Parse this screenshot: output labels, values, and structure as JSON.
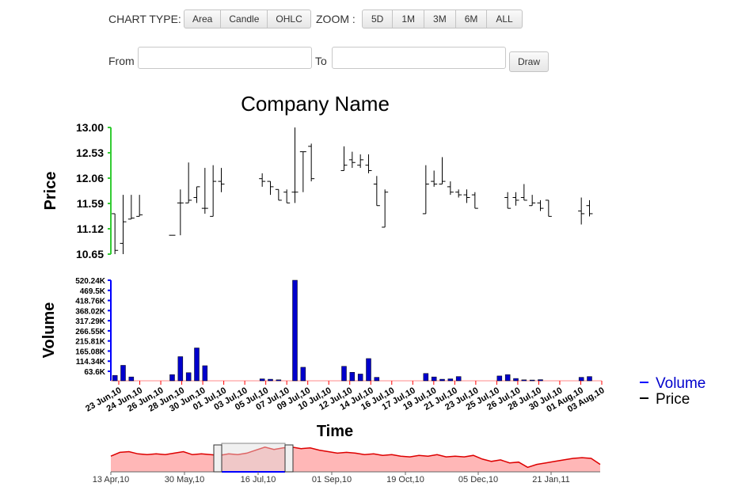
{
  "controls": {
    "chart_type_label": "CHART TYPE:",
    "chart_types": [
      "Area",
      "Candle",
      "OHLC"
    ],
    "zoom_label": "ZOOM :",
    "zoom_options": [
      "5D",
      "1M",
      "3M",
      "6M",
      "ALL"
    ],
    "from_label": "From",
    "from_value": "",
    "to_label": "To",
    "to_value": "",
    "draw_label": "Draw"
  },
  "colors": {
    "price_bar": "#000000",
    "volume_bar": "#0000cc",
    "price_axis": "#33cc33",
    "volume_axis": "#0000ff",
    "navigator_fill": "#ffaaaa",
    "navigator_line": "#dd0000"
  },
  "chart_data": {
    "type": "ohlc",
    "title": "Company Name",
    "xlabel": "Time",
    "price": {
      "ylabel": "Price",
      "ylim": [
        10.65,
        13.0
      ],
      "ticks": [
        "13.00",
        "12.53",
        "12.06",
        "11.59",
        "11.12",
        "10.65"
      ],
      "ohlc": [
        [
          0,
          11.4,
          11.4,
          10.65,
          10.72
        ],
        [
          1,
          10.85,
          11.75,
          10.65,
          11.25
        ],
        [
          2,
          11.3,
          11.75,
          11.3,
          11.32
        ],
        [
          3,
          11.35,
          11.75,
          11.35,
          11.38
        ],
        [
          7,
          11.0,
          11.0,
          11.0,
          11.0
        ],
        [
          8,
          11.6,
          11.85,
          11.0,
          11.6
        ],
        [
          9,
          11.6,
          12.35,
          11.6,
          11.65
        ],
        [
          10,
          11.7,
          11.9,
          11.6,
          11.9
        ],
        [
          11,
          11.5,
          12.25,
          11.4,
          11.5
        ],
        [
          12,
          11.35,
          12.3,
          11.35,
          12.0
        ],
        [
          13,
          12.0,
          12.25,
          11.8,
          11.95
        ],
        [
          18,
          12.05,
          12.15,
          11.9,
          12.0
        ],
        [
          19,
          12.0,
          12.0,
          11.75,
          11.9
        ],
        [
          20,
          11.85,
          11.85,
          11.65,
          11.65
        ],
        [
          21,
          11.8,
          11.85,
          11.6,
          11.6
        ],
        [
          22,
          11.8,
          13.0,
          11.6,
          11.8
        ],
        [
          23,
          12.55,
          12.55,
          11.8,
          12.55
        ],
        [
          24,
          12.65,
          12.7,
          12.0,
          12.05
        ],
        [
          28,
          12.2,
          12.65,
          12.2,
          12.3
        ],
        [
          29,
          12.4,
          12.55,
          12.25,
          12.35
        ],
        [
          30,
          12.3,
          12.5,
          12.25,
          12.4
        ],
        [
          31,
          12.3,
          12.5,
          12.15,
          12.2
        ],
        [
          32,
          11.95,
          12.1,
          11.55,
          11.55
        ],
        [
          33,
          11.15,
          11.85,
          11.15,
          11.8
        ],
        [
          38,
          11.4,
          12.3,
          11.4,
          11.95
        ],
        [
          39,
          12.0,
          12.2,
          11.9,
          11.95
        ],
        [
          40,
          11.95,
          12.45,
          11.95,
          12.0
        ],
        [
          41,
          11.9,
          12.0,
          11.75,
          11.8
        ],
        [
          42,
          11.8,
          11.85,
          11.7,
          11.75
        ],
        [
          43,
          11.75,
          11.85,
          11.6,
          11.7
        ],
        [
          44,
          11.75,
          11.8,
          11.5,
          11.5
        ],
        [
          48,
          11.7,
          11.8,
          11.5,
          11.5
        ],
        [
          49,
          11.7,
          11.8,
          11.55,
          11.65
        ],
        [
          50,
          11.7,
          11.95,
          11.65,
          11.65
        ],
        [
          51,
          11.55,
          11.75,
          11.55,
          11.6
        ],
        [
          52,
          11.6,
          11.65,
          11.45,
          11.5
        ],
        [
          53,
          11.65,
          11.65,
          11.35,
          11.35
        ],
        [
          57,
          11.45,
          11.7,
          11.2,
          11.4
        ],
        [
          58,
          11.55,
          11.65,
          11.35,
          11.4
        ]
      ]
    },
    "volume": {
      "ylabel": "Volume",
      "ylim": [
        0,
        520240
      ],
      "ticks": [
        "520.24K",
        "469.5K",
        "418.76K",
        "368.02K",
        "317.29K",
        "266.55K",
        "215.81K",
        "165.08K",
        "114.34K",
        "63.6K"
      ],
      "bars": [
        [
          0,
          28000
        ],
        [
          1,
          80000
        ],
        [
          2,
          20000
        ],
        [
          7,
          32000
        ],
        [
          8,
          125000
        ],
        [
          9,
          42000
        ],
        [
          10,
          170000
        ],
        [
          11,
          78000
        ],
        [
          18,
          10000
        ],
        [
          19,
          8000
        ],
        [
          20,
          5000
        ],
        [
          22,
          520240
        ],
        [
          23,
          70000
        ],
        [
          28,
          75000
        ],
        [
          29,
          44000
        ],
        [
          30,
          35000
        ],
        [
          31,
          115000
        ],
        [
          32,
          18000
        ],
        [
          38,
          38000
        ],
        [
          39,
          20000
        ],
        [
          40,
          8000
        ],
        [
          41,
          10000
        ],
        [
          42,
          22000
        ],
        [
          47,
          25000
        ],
        [
          48,
          32000
        ],
        [
          49,
          12000
        ],
        [
          50,
          5000
        ],
        [
          51,
          4000
        ],
        [
          52,
          6000
        ],
        [
          57,
          18000
        ],
        [
          58,
          22000
        ]
      ]
    },
    "x_ticks": [
      "23 Jun,10",
      "24 Jun,10",
      "26 Jun,10",
      "28 Jun,10",
      "30 Jun,10",
      "01 Jul,10",
      "03 Jul,10",
      "05 Jul,10",
      "07 Jul,10",
      "09 Jul,10",
      "10 Jul,10",
      "12 Jul,10",
      "14 Jul,10",
      "16 Jul,10",
      "17 Jul,10",
      "19 Jul,10",
      "21 Jul,10",
      "23 Jul,10",
      "25 Jul,10",
      "26 Jul,10",
      "28 Jul,10",
      "30 Jul,10",
      "01 Aug,10",
      "03 Aug,10"
    ],
    "legend": {
      "entries": [
        "Volume",
        "Price"
      ],
      "placement": "right"
    },
    "navigator": {
      "ticks": [
        "13 Apr,10",
        "30 May,10",
        "16 Jul,10",
        "01 Sep,10",
        "19 Oct,10",
        "05 Dec,10",
        "21 Jan,11"
      ],
      "values": [
        11.1,
        11.6,
        11.7,
        11.4,
        11.3,
        11.4,
        11.3,
        11.5,
        11.7,
        11.3,
        11.4,
        11.3,
        11.2,
        11.4,
        11.3,
        11.5,
        11.9,
        12.3,
        12.0,
        12.2,
        12.3,
        12.1,
        12.2,
        11.9,
        11.7,
        11.5,
        11.6,
        11.5,
        11.3,
        11.4,
        11.2,
        11.3,
        11.1,
        11.0,
        11.2,
        11.1,
        11.3,
        11.0,
        11.1,
        11.0,
        11.2,
        10.7,
        10.4,
        10.6,
        10.2,
        10.3,
        9.6,
        10.0,
        10.2,
        10.4,
        10.6,
        10.8,
        10.9,
        10.8,
        10.0
      ],
      "range": [
        "23 Jun,10",
        "03 Aug,10"
      ]
    }
  }
}
